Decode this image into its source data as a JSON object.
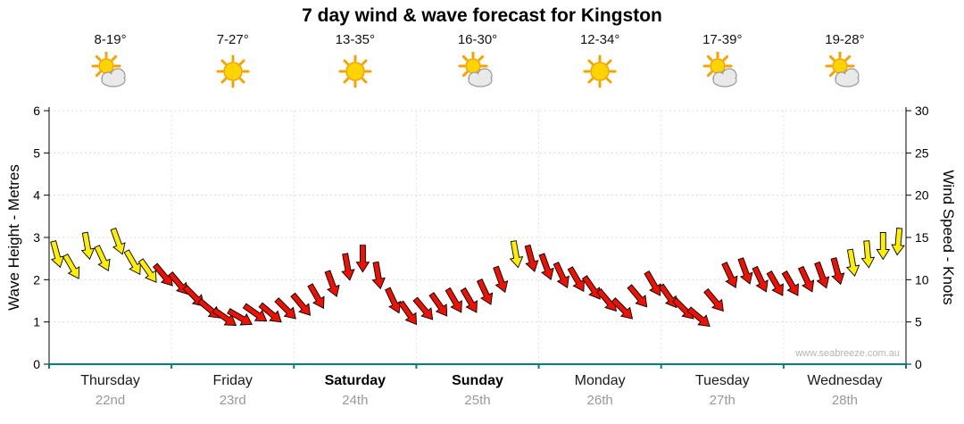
{
  "title": "7 day wind & wave forecast for Kingston",
  "watermark": "www.seabreeze.com.au",
  "days": [
    {
      "name": "Thursday",
      "date": "22nd",
      "temp": "8-19°",
      "icon": "sun-cloud",
      "weekend": false
    },
    {
      "name": "Friday",
      "date": "23rd",
      "temp": "7-27°",
      "icon": "sun",
      "weekend": false
    },
    {
      "name": "Saturday",
      "date": "24th",
      "temp": "13-35°",
      "icon": "sun",
      "weekend": true
    },
    {
      "name": "Sunday",
      "date": "25th",
      "temp": "16-30°",
      "icon": "sun-cloud",
      "weekend": true
    },
    {
      "name": "Monday",
      "date": "26th",
      "temp": "12-34°",
      "icon": "sun",
      "weekend": false
    },
    {
      "name": "Tuesday",
      "date": "27th",
      "temp": "17-39°",
      "icon": "sun-cloud",
      "weekend": false
    },
    {
      "name": "Wednesday",
      "date": "28th",
      "temp": "19-28°",
      "icon": "sun-cloud",
      "weekend": false
    }
  ],
  "axes": {
    "left_label": "Wave Height - Metres",
    "right_label": "Wind Speed - Knots",
    "left_ticks": [
      0,
      1,
      2,
      3,
      4,
      5,
      6
    ],
    "right_ticks": [
      0,
      5,
      10,
      15,
      20,
      25,
      30
    ],
    "left_range": [
      0,
      6
    ],
    "right_range": [
      0,
      30
    ]
  },
  "colors": {
    "yellow": "#ffee00",
    "red": "#ee1000",
    "arrow_outline": "#000000",
    "baseline_teal": "#008080",
    "gridline": "#dcdcdc"
  },
  "chart_data": {
    "type": "scatter",
    "subtype": "wind-arrow-series",
    "x_unit": "days (0 = Thursday 22nd 00:00, 7 = end of Wednesday 28th)",
    "y_unit": "wind speed in knots (right axis); wave-height metres = knots / 5 (left axis)",
    "point_format": [
      "day",
      "knots",
      "direction_deg",
      "color"
    ],
    "points": [
      [
        0.0625,
        13,
        165,
        "y"
      ],
      [
        0.1875,
        11.5,
        150,
        "y"
      ],
      [
        0.3125,
        14,
        170,
        "y"
      ],
      [
        0.4375,
        12.5,
        155,
        "y"
      ],
      [
        0.5625,
        14.5,
        160,
        "y"
      ],
      [
        0.6875,
        12,
        150,
        "y"
      ],
      [
        0.8125,
        11,
        145,
        "y"
      ],
      [
        0.9375,
        10.5,
        140,
        "r"
      ],
      [
        1.0625,
        9.5,
        140,
        "r"
      ],
      [
        1.1875,
        8,
        135,
        "r"
      ],
      [
        1.3125,
        6.5,
        130,
        "r"
      ],
      [
        1.4375,
        5.5,
        125,
        "r"
      ],
      [
        1.5625,
        5.5,
        120,
        "r"
      ],
      [
        1.6875,
        6,
        125,
        "r"
      ],
      [
        1.8125,
        6,
        130,
        "r"
      ],
      [
        1.9375,
        6.5,
        135,
        "r"
      ],
      [
        2.0625,
        7,
        140,
        "r"
      ],
      [
        2.1875,
        8,
        150,
        "r"
      ],
      [
        2.3125,
        9.5,
        160,
        "r"
      ],
      [
        2.4375,
        11.5,
        170,
        "r"
      ],
      [
        2.5625,
        12.5,
        180,
        "r"
      ],
      [
        2.6875,
        10.5,
        170,
        "r"
      ],
      [
        2.8125,
        7.5,
        155,
        "r"
      ],
      [
        2.9375,
        6,
        145,
        "r"
      ],
      [
        3.0625,
        6.5,
        140,
        "r"
      ],
      [
        3.1875,
        7,
        145,
        "r"
      ],
      [
        3.3125,
        7.5,
        150,
        "r"
      ],
      [
        3.4375,
        7.5,
        150,
        "r"
      ],
      [
        3.5625,
        8.5,
        155,
        "r"
      ],
      [
        3.6875,
        10,
        160,
        "r"
      ],
      [
        3.8125,
        13,
        170,
        "y"
      ],
      [
        3.9375,
        12.5,
        165,
        "r"
      ],
      [
        4.0625,
        11.5,
        160,
        "r"
      ],
      [
        4.1875,
        10.5,
        155,
        "r"
      ],
      [
        4.3125,
        10,
        150,
        "r"
      ],
      [
        4.4375,
        9,
        145,
        "r"
      ],
      [
        4.5625,
        7.5,
        140,
        "r"
      ],
      [
        4.6875,
        6.5,
        135,
        "r"
      ],
      [
        4.8125,
        8,
        140,
        "r"
      ],
      [
        4.9375,
        9.5,
        150,
        "r"
      ],
      [
        5.0625,
        8,
        145,
        "r"
      ],
      [
        5.1875,
        6.5,
        135,
        "r"
      ],
      [
        5.3125,
        5.5,
        130,
        "r"
      ],
      [
        5.4375,
        7.5,
        140,
        "r"
      ],
      [
        5.5625,
        10.5,
        155,
        "r"
      ],
      [
        5.6875,
        11,
        160,
        "r"
      ],
      [
        5.8125,
        10,
        155,
        "r"
      ],
      [
        5.9375,
        9.5,
        150,
        "r"
      ],
      [
        6.0625,
        9.5,
        150,
        "r"
      ],
      [
        6.1875,
        10,
        155,
        "r"
      ],
      [
        6.3125,
        10.5,
        160,
        "r"
      ],
      [
        6.4375,
        11,
        165,
        "r"
      ],
      [
        6.5625,
        12,
        170,
        "y"
      ],
      [
        6.6875,
        13,
        175,
        "y"
      ],
      [
        6.8125,
        14,
        180,
        "y"
      ],
      [
        6.9375,
        14.5,
        185,
        "y"
      ]
    ]
  }
}
